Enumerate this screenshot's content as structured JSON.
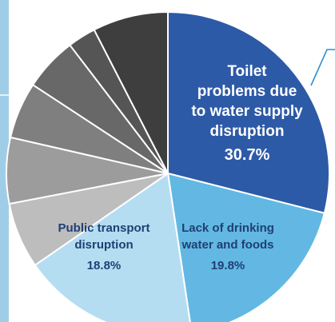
{
  "chart_data": {
    "type": "pie",
    "start": "12 o'clock",
    "direction": "clockwise",
    "slices": [
      {
        "label": "Toilet problems due to water supply disruption",
        "value": 30.7,
        "value_label": "30.7%",
        "color": "#2d5aa6",
        "shown": true
      },
      {
        "label": "Lack of drinking water and foods",
        "value": 19.8,
        "value_label": "19.8%",
        "color": "#62b8e2",
        "shown": true
      },
      {
        "label": "Public transport disruption",
        "value": 18.8,
        "value_label": "18.8%",
        "color": "#b5ddf2",
        "shown": true
      },
      {
        "label": "",
        "value": 7.0,
        "value_label": "",
        "color": "#bdbdbd",
        "shown": false
      },
      {
        "label": "",
        "value": 7.0,
        "value_label": "",
        "color": "#9c9c9c",
        "shown": false
      },
      {
        "label": "",
        "value": 6.0,
        "value_label": "",
        "color": "#7f7f7f",
        "shown": false
      },
      {
        "label": "",
        "value": 5.7,
        "value_label": "",
        "color": "#686868",
        "shown": false
      },
      {
        "label": "",
        "value": 3.0,
        "value_label": "",
        "color": "#555555",
        "shown": false
      },
      {
        "label": "",
        "value": 8.0,
        "value_label": "",
        "color": "#3e3e3e",
        "shown": false
      }
    ],
    "legend": "none"
  },
  "label_lines": {
    "toilet": [
      "Toilet",
      "problems due",
      "to water supply",
      "disruption"
    ],
    "drinking": [
      "Lack of drinking",
      "water and foods"
    ],
    "transport": [
      "Public transport",
      "disruption"
    ]
  },
  "colors": {
    "left_bar": "#9fcde8",
    "callout": "#2d8fd0"
  }
}
